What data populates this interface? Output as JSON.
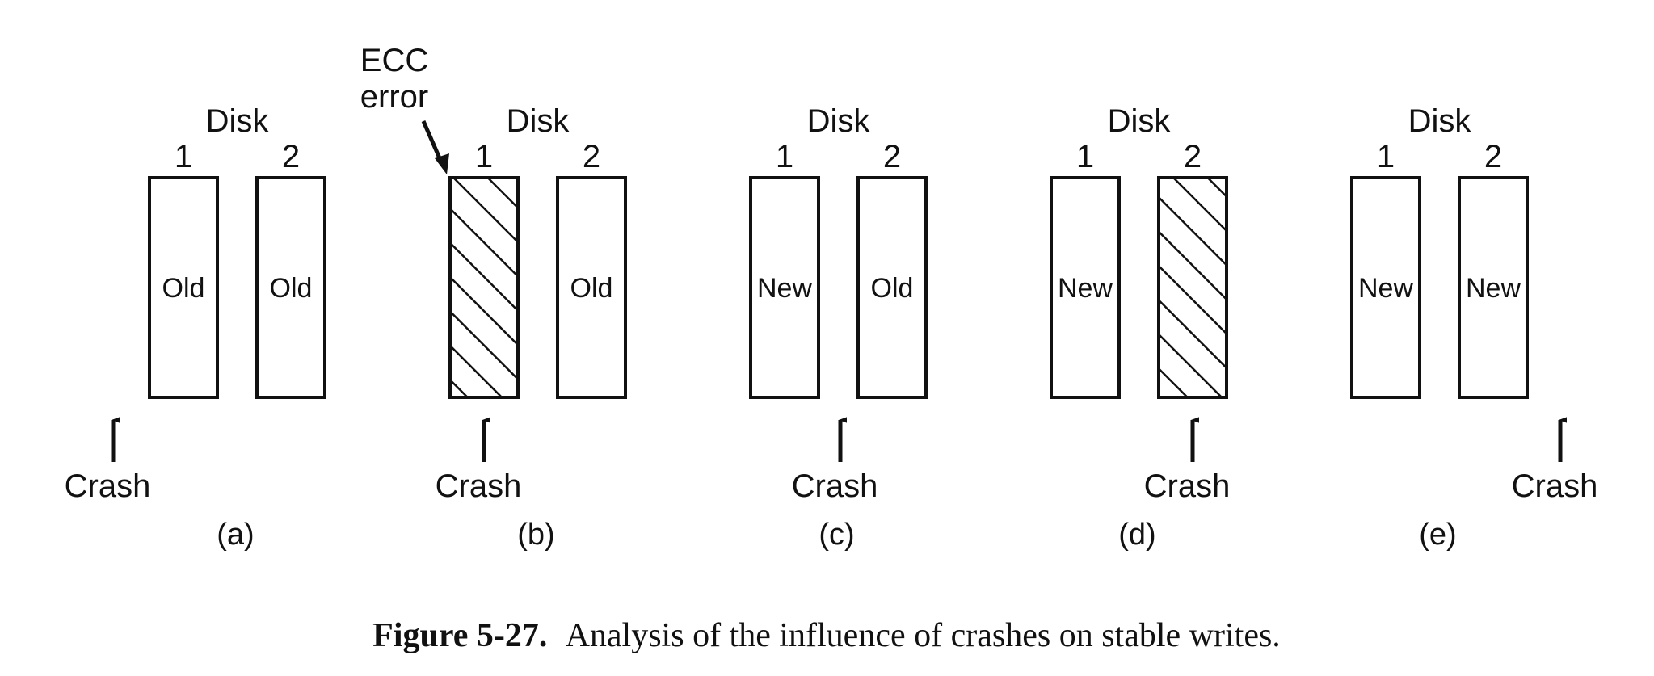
{
  "disk_heading": "Disk",
  "disk_numbers": [
    "1",
    "2"
  ],
  "crash_label": "Crash",
  "ecc": {
    "line1": "ECC",
    "line2": "error"
  },
  "caption": {
    "number": "Figure 5-27.",
    "text": "Analysis of the influence of crashes on stable writes."
  },
  "panels": [
    {
      "id": "a",
      "label": "(a)",
      "disk1": {
        "text": "Old",
        "hatched": false
      },
      "disk2": {
        "text": "Old",
        "hatched": false
      },
      "crash_position": "before-disk-1"
    },
    {
      "id": "b",
      "label": "(b)",
      "disk1": {
        "text": "",
        "hatched": true
      },
      "disk2": {
        "text": "Old",
        "hatched": false
      },
      "crash_position": "under-disk-1",
      "ecc_error": true
    },
    {
      "id": "c",
      "label": "(c)",
      "disk1": {
        "text": "New",
        "hatched": false
      },
      "disk2": {
        "text": "Old",
        "hatched": false
      },
      "crash_position": "between-disks"
    },
    {
      "id": "d",
      "label": "(d)",
      "disk1": {
        "text": "New",
        "hatched": false
      },
      "disk2": {
        "text": "",
        "hatched": true
      },
      "crash_position": "under-disk-2"
    },
    {
      "id": "e",
      "label": "(e)",
      "disk1": {
        "text": "New",
        "hatched": false
      },
      "disk2": {
        "text": "New",
        "hatched": false
      },
      "crash_position": "after-disk-2"
    }
  ]
}
